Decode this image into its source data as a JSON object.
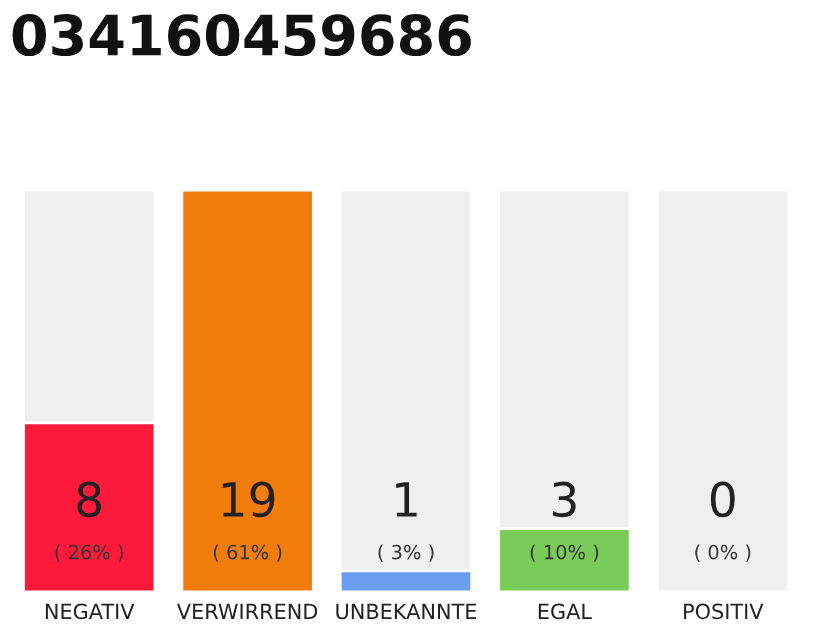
{
  "chart_data": {
    "type": "bar",
    "title": "034160459686",
    "categories": [
      "NEGATIV",
      "VERWIRREND",
      "UNBEKANNTE",
      "EGAL",
      "POSITIV"
    ],
    "values": [
      8,
      19,
      1,
      3,
      0
    ],
    "colors": [
      "#ff1a3c",
      "#f27d0c",
      "#6a9cf0",
      "#7acc5a",
      null
    ],
    "data_labels": true,
    "annotations": [
      "( 26% )",
      "( 61% )",
      "( 3% )",
      "( 10% )",
      "( 0% )"
    ]
  }
}
